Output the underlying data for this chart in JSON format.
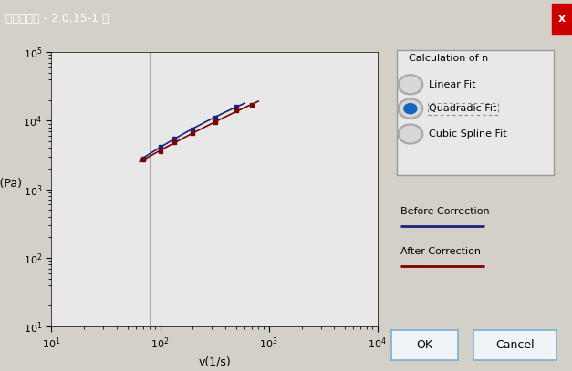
{
  "title": "非线性校正 - 2.0,15-1 高",
  "xlabel": "v(1/s)",
  "ylabel": "τ(Pa)",
  "blue_x": [
    70,
    100,
    135,
    200,
    320,
    500
  ],
  "blue_y": [
    2800,
    4200,
    5500,
    7500,
    11000,
    16000
  ],
  "red_x": [
    70,
    100,
    135,
    200,
    320,
    500,
    700
  ],
  "red_y": [
    2700,
    3600,
    4800,
    6500,
    9500,
    14000,
    17000
  ],
  "blue_color": "#1a237e",
  "red_color": "#7b0000",
  "bg_color": "#d4d0c8",
  "plot_bg_color": "#e8e8e8",
  "vline_x": 80,
  "panel_bg": "#d4d0c8",
  "legend_label_before": "Before Correction",
  "legend_label_after": "After Correction",
  "radio_options": [
    "Linear Fit",
    "Quadradic Fit",
    "Cubic Spline Fit"
  ],
  "radio_selected": 1,
  "calc_label": "Calculation of n",
  "xlim": [
    10,
    10000
  ],
  "ylim": [
    10,
    100000
  ],
  "x_tick_vals": [
    10,
    100,
    1000,
    10000
  ],
  "y_tick_vals": [
    10,
    100,
    1000,
    10000,
    100000
  ]
}
